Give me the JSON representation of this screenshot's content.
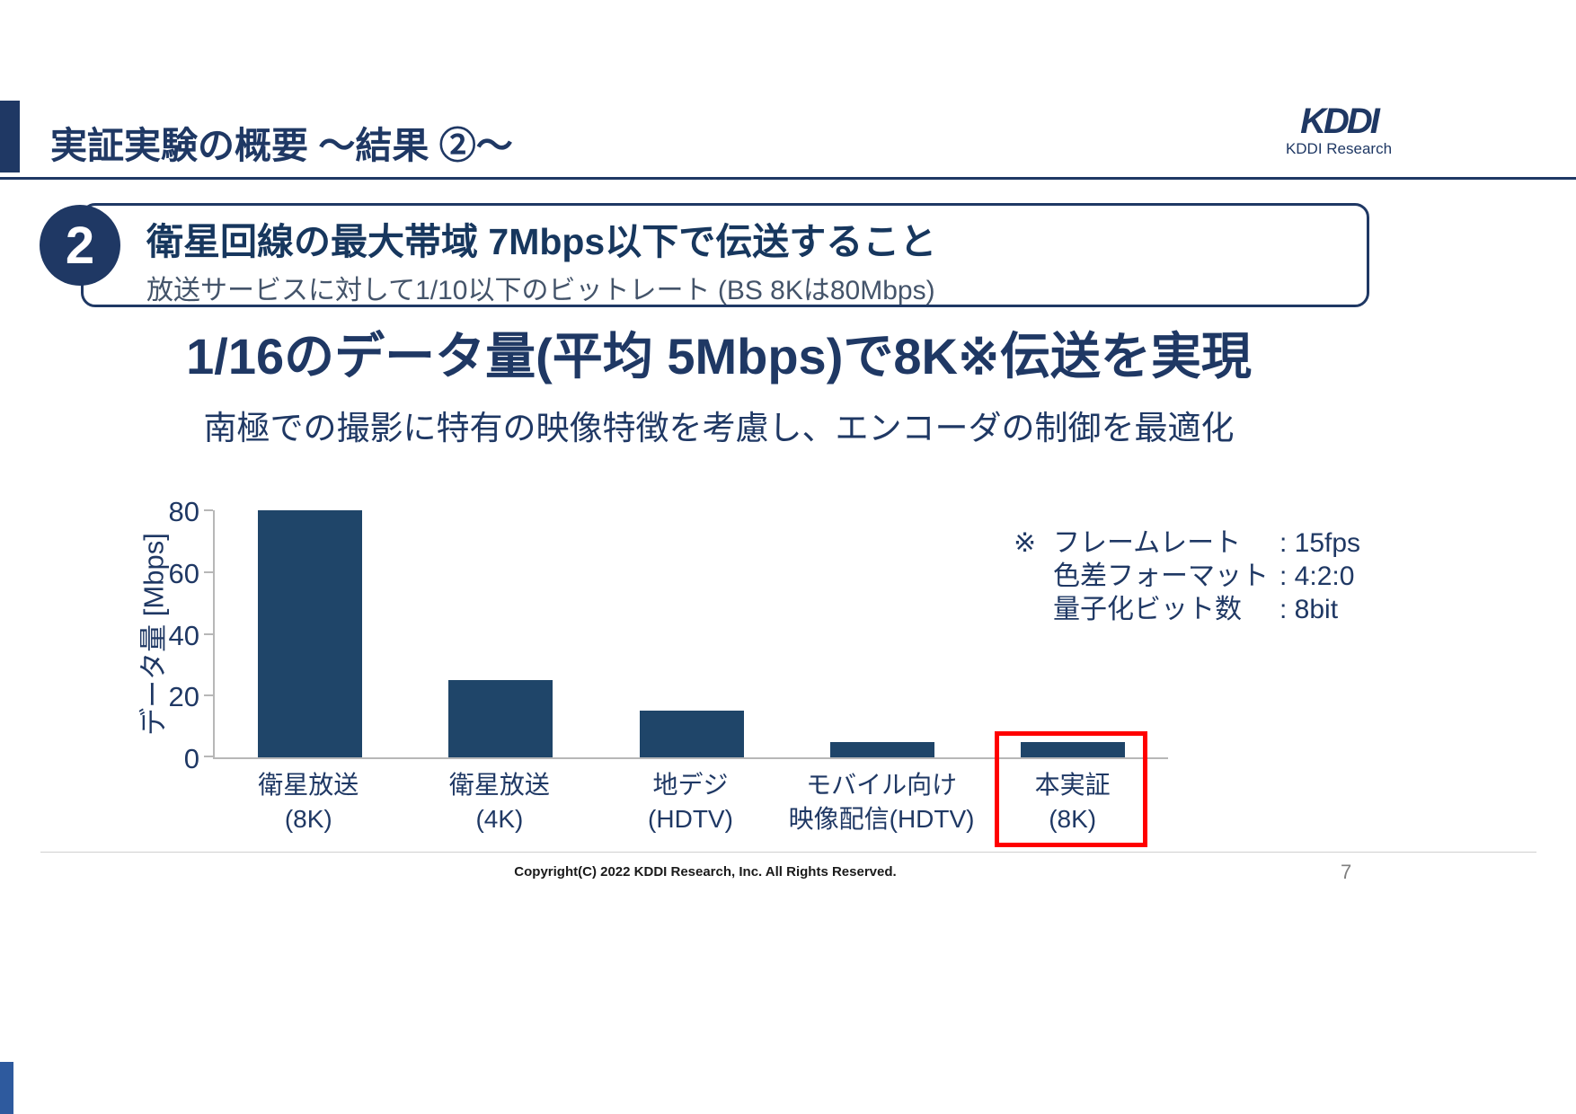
{
  "colors": {
    "navy": "#1f3864",
    "bar": "#1f4569",
    "highlight": "#ff0000",
    "axis": "#b7b7b7"
  },
  "header": {
    "title": "実証実験の概要 ～結果 ②～",
    "logo_text": "KDDI",
    "logo_subtext": "KDDI Research"
  },
  "point": {
    "number": "2",
    "heading": "衛星回線の最大帯域 7Mbps以下で伝送すること",
    "subtext": "放送サービスに対して1/10以下のビットレート (BS 8Kは80Mbps)"
  },
  "headline": "1/16のデータ量(平均 5Mbps)で8K※伝送を実現",
  "subheadline": "南極での撮影に特有の映像特徴を考慮し、エンコーダの制御を最適化",
  "chart_data": {
    "type": "bar",
    "categories": [
      [
        "衛星放送",
        "(8K)"
      ],
      [
        "衛星放送",
        "(4K)"
      ],
      [
        "地デジ",
        "(HDTV)"
      ],
      [
        "モバイル向け",
        "映像配信(HDTV)"
      ],
      [
        "本実証",
        "(8K)"
      ]
    ],
    "values": [
      80,
      25,
      15,
      5,
      5
    ],
    "title": "",
    "xlabel": "",
    "ylabel": "データ量 [Mbps]",
    "yticks": [
      0,
      20,
      40,
      60,
      80
    ],
    "ylim": [
      0,
      80
    ],
    "grid": false,
    "legend_position": "none",
    "highlight_index": 4
  },
  "notes": {
    "rows": [
      {
        "marker": "※",
        "label": "フレームレート",
        "value": ": 15fps"
      },
      {
        "marker": "",
        "label": "色差フォーマット",
        "value": ": 4:2:0"
      },
      {
        "marker": "",
        "label": "量子化ビット数",
        "value": ": 8bit"
      }
    ]
  },
  "footer": {
    "copyright": "Copyright(C) 2022 KDDI Research, Inc. All Rights Reserved.",
    "page": "7"
  }
}
